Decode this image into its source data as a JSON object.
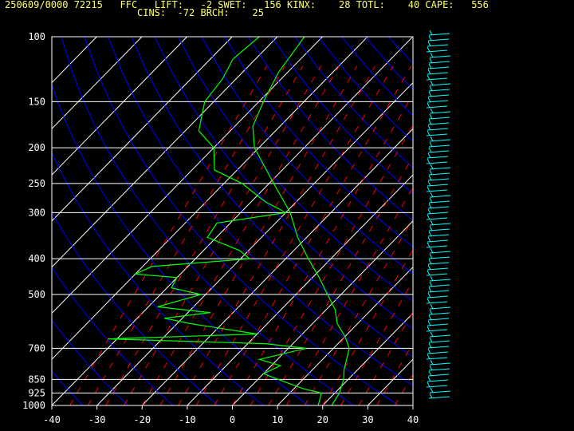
{
  "header": {
    "line1": "250609/0000 72215   FFC   LIFT:   -2 SWET:   156 KINX:    28 TOTL:    40 CAPE:   556",
    "line2": "CINS:  -72 BRCH:    25"
  },
  "colors": {
    "background": "#000000",
    "isobar": "#ffffff",
    "isotherm": "#ffffff",
    "dry_adiabat": "#0000ff",
    "mixing_ratio": "#ff0000",
    "temperature": "#00ff00",
    "dewpoint": "#00ff00",
    "wind_barbs": "#00ffff",
    "header_text": "#ffff66"
  },
  "chart_data": {
    "type": "line",
    "subtype": "skew-t log-p sounding",
    "title": "",
    "xlabel": "",
    "ylabel": "",
    "xlim": [
      -40,
      40
    ],
    "ylim": [
      1000,
      100
    ],
    "y_scale": "log",
    "x_ticks": [
      "-40",
      "-30",
      "-20",
      "-10",
      "0",
      "10",
      "20",
      "30",
      "40"
    ],
    "pressure_levels": [
      "100",
      "150",
      "200",
      "250",
      "300",
      "400",
      "500",
      "700",
      "850",
      "925",
      "1000"
    ],
    "series": [
      {
        "role": "temperature",
        "pressure": [
          1000,
          925,
          850,
          800,
          700,
          650,
          600,
          550,
          500,
          450,
          400,
          350,
          300,
          250,
          200,
          175,
          150,
          125,
          100
        ],
        "values": [
          22,
          21,
          19,
          17,
          13.5,
          10,
          5.5,
          2,
          -3,
          -8.5,
          -15,
          -22,
          -29,
          -39,
          -51,
          -56,
          -59,
          -62,
          -64
        ]
      },
      {
        "role": "dewpoint",
        "pressure": [
          1000,
          925,
          900,
          860,
          820,
          780,
          750,
          700,
          680,
          660,
          640,
          600,
          580,
          560,
          540,
          500,
          480,
          450,
          440,
          420,
          400,
          380,
          350,
          320,
          300,
          280,
          250,
          230,
          200,
          180,
          150,
          130,
          115,
          100
        ],
        "values": [
          19,
          17,
          12,
          6,
          0,
          2,
          -4,
          4,
          -6,
          -42,
          -10,
          -27,
          -34,
          -25,
          -38,
          -31,
          -39,
          -40,
          -50,
          -48,
          -28,
          -32,
          -42,
          -43,
          -30,
          -37,
          -46,
          -55,
          -60,
          -67,
          -72,
          -73,
          -75,
          -74
        ]
      }
    ]
  }
}
